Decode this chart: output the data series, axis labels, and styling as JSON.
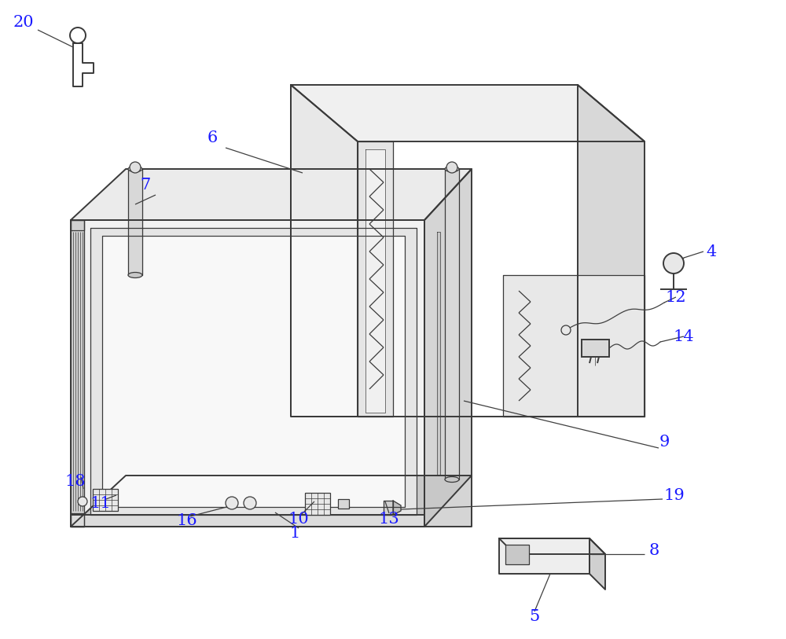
{
  "bg_color": "#ffffff",
  "line_color": "#3a3a3a",
  "label_color": "#1a1aff",
  "lw": 1.4,
  "tlw": 0.9,
  "vlw": 0.5
}
